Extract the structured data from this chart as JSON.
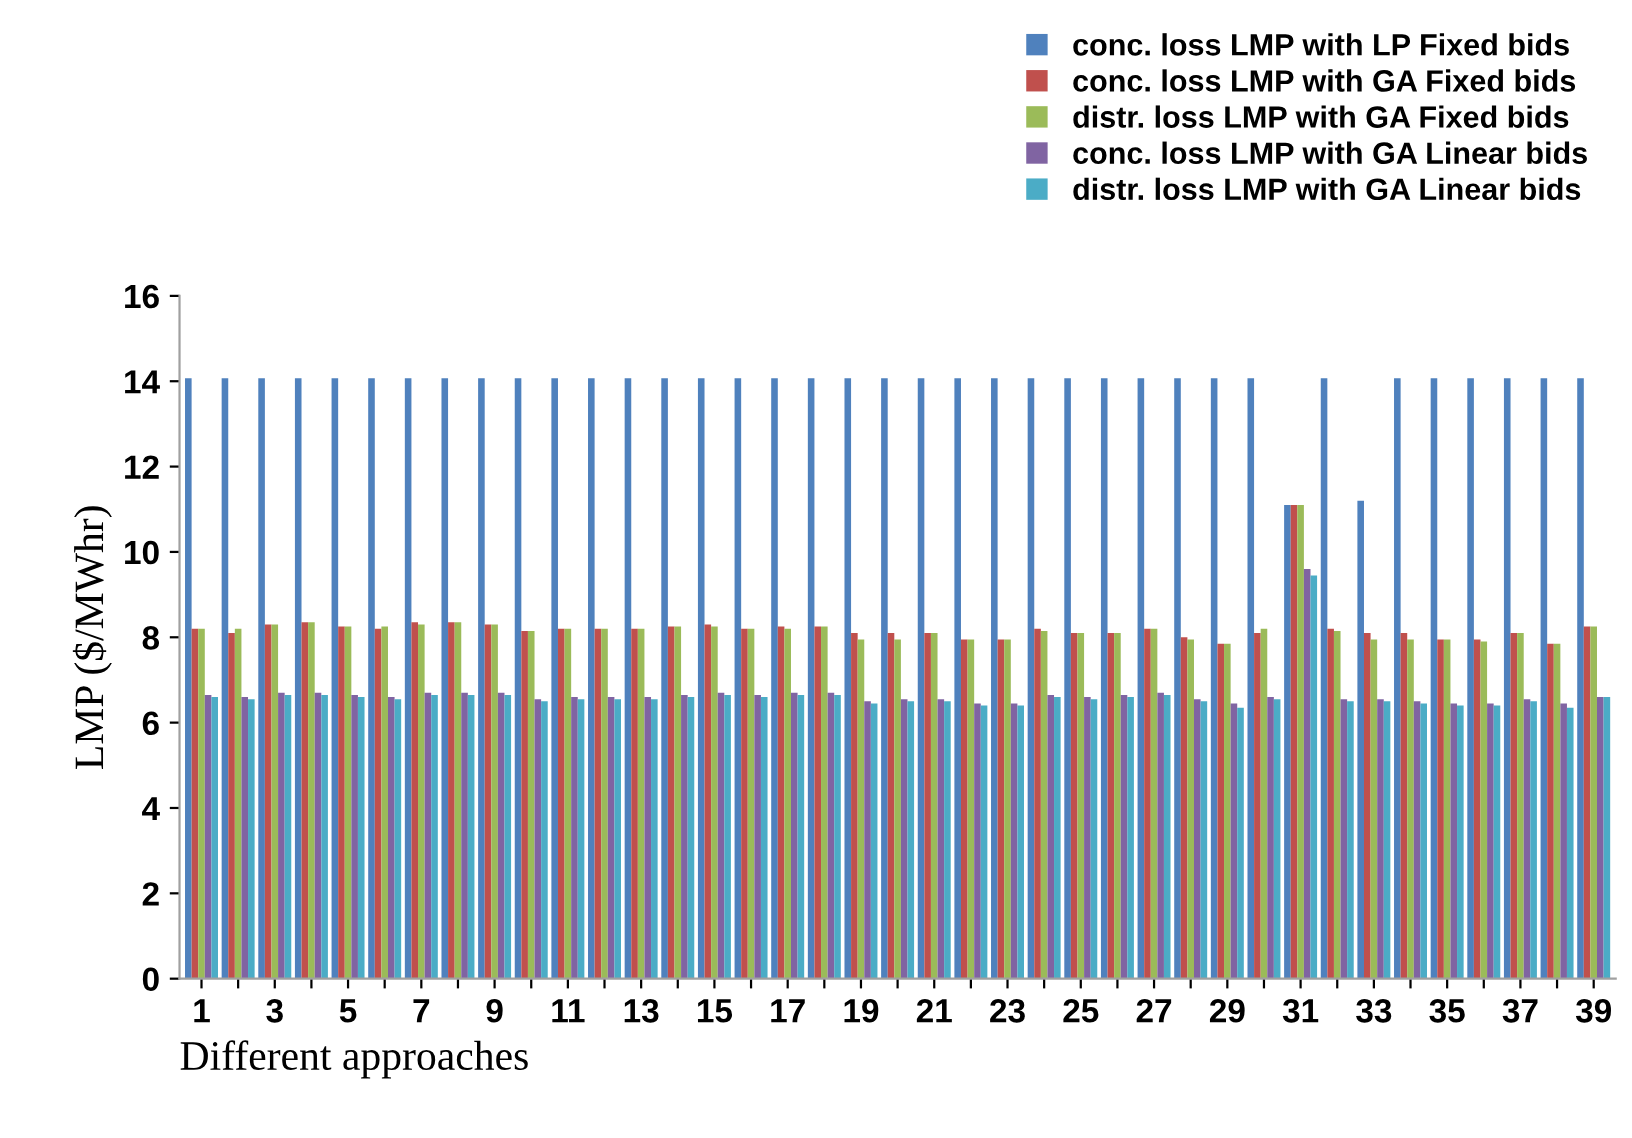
{
  "chart_data": {
    "type": "bar",
    "xlabel": "Different approaches",
    "ylabel": "LMP ($/MWhr)",
    "categories": [
      "1",
      null,
      "3",
      null,
      "5",
      null,
      "7",
      null,
      "9",
      null,
      "11",
      null,
      "13",
      null,
      "15",
      null,
      "17",
      null,
      "19",
      null,
      "21",
      null,
      "23",
      null,
      "25",
      null,
      "27",
      null,
      "29",
      null,
      "31",
      null,
      "33",
      null,
      "35",
      null,
      "37",
      null,
      "39"
    ],
    "series": [
      {
        "name": "conc. loss LMP with LP Fixed bids",
        "color": "#4f81bd",
        "values": [
          14.07,
          14.07,
          14.07,
          14.07,
          14.07,
          14.07,
          14.07,
          14.07,
          14.07,
          14.07,
          14.07,
          14.07,
          14.07,
          14.07,
          14.07,
          14.07,
          14.07,
          14.07,
          14.07,
          14.07,
          14.07,
          14.07,
          14.07,
          14.07,
          14.07,
          14.07,
          14.07,
          14.07,
          14.07,
          14.07,
          11.1,
          14.07,
          11.2,
          14.07,
          14.07,
          14.07,
          14.07,
          14.07,
          14.07
        ]
      },
      {
        "name": "conc. loss LMP with GA Fixed bids",
        "color": "#c0504d",
        "values": [
          8.2,
          8.1,
          8.3,
          8.35,
          8.25,
          8.2,
          8.35,
          8.35,
          8.3,
          8.15,
          8.2,
          8.2,
          8.2,
          8.25,
          8.3,
          8.2,
          8.25,
          8.25,
          8.1,
          8.1,
          8.1,
          7.95,
          7.95,
          8.2,
          8.1,
          8.1,
          8.2,
          8.0,
          7.85,
          8.1,
          11.1,
          8.2,
          8.1,
          8.1,
          7.95,
          7.95,
          8.1,
          7.85,
          8.25
        ]
      },
      {
        "name": "distr. loss LMP with GA Fixed bids",
        "color": "#9bbb59",
        "values": [
          8.2,
          8.2,
          8.3,
          8.35,
          8.25,
          8.25,
          8.3,
          8.35,
          8.3,
          8.15,
          8.2,
          8.2,
          8.2,
          8.25,
          8.25,
          8.2,
          8.2,
          8.25,
          7.95,
          7.95,
          8.1,
          7.95,
          7.95,
          8.15,
          8.1,
          8.1,
          8.2,
          7.95,
          7.85,
          8.2,
          11.1,
          8.15,
          7.95,
          7.95,
          7.95,
          7.9,
          8.1,
          7.85,
          8.25
        ]
      },
      {
        "name": "conc. loss LMP with GA Linear bids",
        "color": "#8064a2",
        "values": [
          6.65,
          6.6,
          6.7,
          6.7,
          6.65,
          6.6,
          6.7,
          6.7,
          6.7,
          6.55,
          6.6,
          6.6,
          6.6,
          6.65,
          6.7,
          6.65,
          6.7,
          6.7,
          6.5,
          6.55,
          6.55,
          6.45,
          6.45,
          6.65,
          6.6,
          6.65,
          6.7,
          6.55,
          6.45,
          6.6,
          9.6,
          6.55,
          6.55,
          6.5,
          6.45,
          6.45,
          6.55,
          6.45,
          6.6
        ]
      },
      {
        "name": "distr. loss LMP with GA Linear bids",
        "color": "#4bacc6",
        "values": [
          6.6,
          6.55,
          6.65,
          6.65,
          6.6,
          6.55,
          6.65,
          6.65,
          6.65,
          6.5,
          6.55,
          6.55,
          6.55,
          6.6,
          6.65,
          6.6,
          6.65,
          6.65,
          6.45,
          6.5,
          6.5,
          6.4,
          6.4,
          6.6,
          6.55,
          6.6,
          6.65,
          6.5,
          6.35,
          6.55,
          9.45,
          6.5,
          6.5,
          6.45,
          6.4,
          6.4,
          6.5,
          6.35,
          6.6
        ]
      }
    ],
    "ylim": [
      0,
      16
    ],
    "yticks": [
      0,
      2,
      4,
      6,
      8,
      10,
      12,
      14,
      16
    ],
    "legend": "top right"
  }
}
